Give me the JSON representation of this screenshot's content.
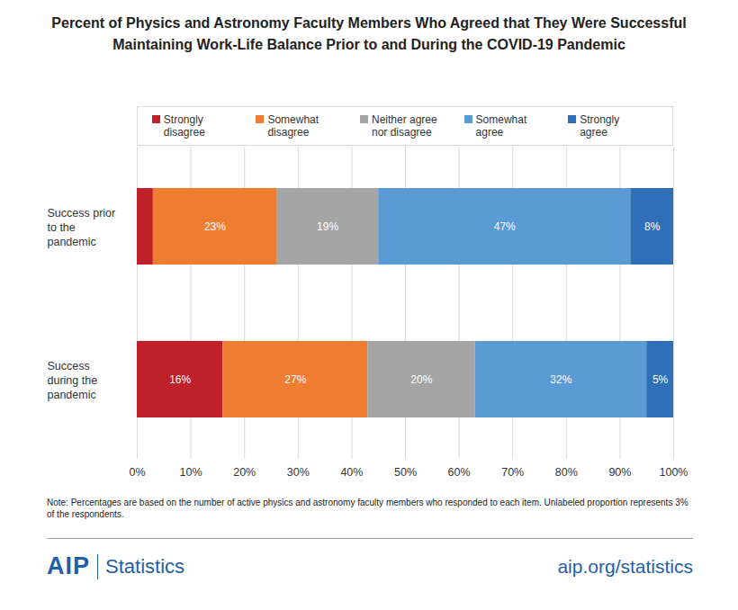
{
  "chart_data": {
    "type": "bar",
    "orientation": "horizontal",
    "stacked": true,
    "title": "Percent of Physics and Astronomy Faculty Members Who Agreed that They Were Successful Maintaining Work-Life Balance Prior to and During the COVID-19 Pandemic",
    "categories": [
      "Success prior to the pandemic",
      "Success during the pandemic"
    ],
    "series": [
      {
        "name": "Strongly disagree",
        "color": "#c0202a",
        "values": [
          3,
          16
        ],
        "value_labels": [
          null,
          "16%"
        ]
      },
      {
        "name": "Somewhat disagree",
        "color": "#ee7d31",
        "values": [
          23,
          27
        ],
        "value_labels": [
          "23%",
          "27%"
        ]
      },
      {
        "name": "Neither agree nor disagree",
        "color": "#a5a5a5",
        "values": [
          19,
          20
        ],
        "value_labels": [
          "19%",
          "20%"
        ]
      },
      {
        "name": "Somewhat agree",
        "color": "#5b9bd5",
        "values": [
          47,
          32
        ],
        "value_labels": [
          "47%",
          "32%"
        ]
      },
      {
        "name": "Strongly agree",
        "color": "#2e6fb8",
        "values": [
          8,
          5
        ],
        "value_labels": [
          "8%",
          "5%"
        ]
      }
    ],
    "xlim": [
      0,
      100
    ],
    "xticks": [
      {
        "value": 0,
        "label": "0%"
      },
      {
        "value": 10,
        "label": "10%"
      },
      {
        "value": 20,
        "label": "20%"
      },
      {
        "value": 30,
        "label": "30%"
      },
      {
        "value": 40,
        "label": "40%"
      },
      {
        "value": 50,
        "label": "50%"
      },
      {
        "value": 60,
        "label": "60%"
      },
      {
        "value": 70,
        "label": "70%"
      },
      {
        "value": 80,
        "label": "80%"
      },
      {
        "value": 90,
        "label": "90%"
      },
      {
        "value": 100,
        "label": "100%"
      }
    ],
    "grid": true,
    "legend": "top",
    "data_labels": true,
    "note": "Note: Percentages are based on the number of active physics and astronomy faculty members who responded to each item. Unlabeled proportion represents 3% of the respondents.",
    "branding": {
      "name": "AIP",
      "label": "Statistics"
    },
    "source": "aip.org/statistics"
  }
}
